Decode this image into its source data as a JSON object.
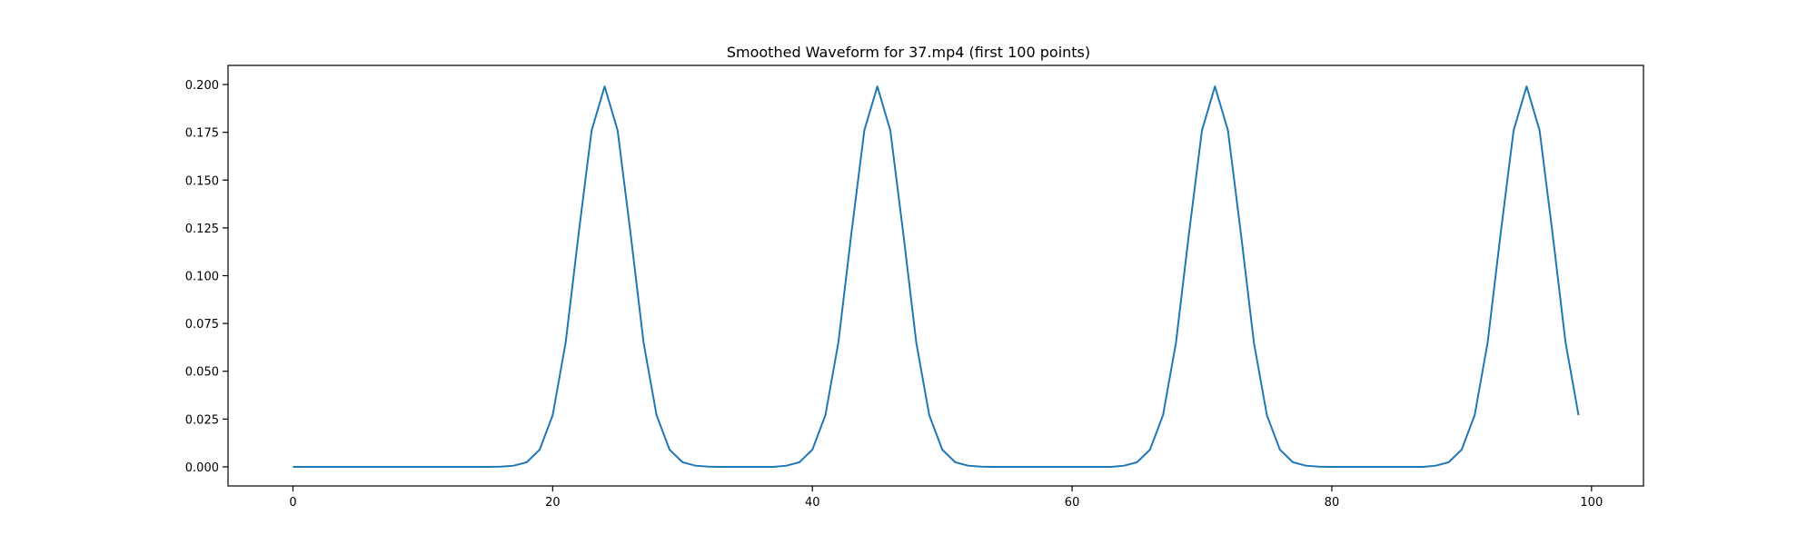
{
  "chart_data": {
    "type": "line",
    "title": "Smoothed Waveform for 37.mp4 (first 100 points)",
    "xlabel": "",
    "ylabel": "",
    "xlim": [
      -5,
      104
    ],
    "ylim": [
      -0.01,
      0.21
    ],
    "xticks": [
      0,
      20,
      40,
      60,
      80,
      100
    ],
    "xtick_labels": [
      "0",
      "20",
      "40",
      "60",
      "80",
      "100"
    ],
    "yticks": [
      0.0,
      0.025,
      0.05,
      0.075,
      0.1,
      0.125,
      0.15,
      0.175,
      0.2
    ],
    "ytick_labels": [
      "0.000",
      "0.025",
      "0.050",
      "0.075",
      "0.100",
      "0.125",
      "0.150",
      "0.175",
      "0.200"
    ],
    "grid": false,
    "legend": false,
    "series": [
      {
        "color": "#1f77b4",
        "x": [
          0,
          1,
          2,
          3,
          4,
          5,
          6,
          7,
          8,
          9,
          10,
          11,
          12,
          13,
          14,
          15,
          16,
          17,
          18,
          19,
          20,
          21,
          22,
          23,
          24,
          25,
          26,
          27,
          28,
          29,
          30,
          31,
          32,
          33,
          34,
          35,
          36,
          37,
          38,
          39,
          40,
          41,
          42,
          43,
          44,
          45,
          46,
          47,
          48,
          49,
          50,
          51,
          52,
          53,
          54,
          55,
          56,
          57,
          58,
          59,
          60,
          61,
          62,
          63,
          64,
          65,
          66,
          67,
          68,
          69,
          70,
          71,
          72,
          73,
          74,
          75,
          76,
          77,
          78,
          79,
          80,
          81,
          82,
          83,
          84,
          85,
          86,
          87,
          88,
          89,
          90,
          91,
          92,
          93,
          94,
          95,
          96,
          97,
          98,
          99
        ],
        "y": [
          0.0,
          0.0,
          0.0,
          0.0,
          0.0,
          0.0,
          0.0,
          0.0,
          0.0,
          0.0,
          0.0,
          0.0,
          0.0,
          0.0,
          0.0,
          0.0,
          0.0001,
          0.0006,
          0.0024,
          0.009,
          0.027,
          0.065,
          0.122,
          0.176,
          0.199,
          0.176,
          0.122,
          0.065,
          0.027,
          0.009,
          0.0024,
          0.0006,
          0.0001,
          0.0,
          0.0,
          0.0,
          0.0,
          0.0,
          0.0006,
          0.0024,
          0.009,
          0.027,
          0.065,
          0.122,
          0.176,
          0.199,
          0.176,
          0.122,
          0.065,
          0.027,
          0.009,
          0.0024,
          0.0006,
          0.0001,
          0.0,
          0.0,
          0.0,
          0.0,
          0.0,
          0.0,
          0.0,
          0.0,
          0.0,
          0.0,
          0.0006,
          0.0024,
          0.009,
          0.027,
          0.065,
          0.122,
          0.176,
          0.199,
          0.176,
          0.122,
          0.065,
          0.027,
          0.009,
          0.0024,
          0.0006,
          0.0001,
          0.0,
          0.0,
          0.0,
          0.0,
          0.0,
          0.0,
          0.0,
          0.0,
          0.0006,
          0.0024,
          0.009,
          0.027,
          0.065,
          0.122,
          0.176,
          0.199,
          0.176,
          0.122,
          0.065,
          0.027
        ]
      }
    ]
  }
}
